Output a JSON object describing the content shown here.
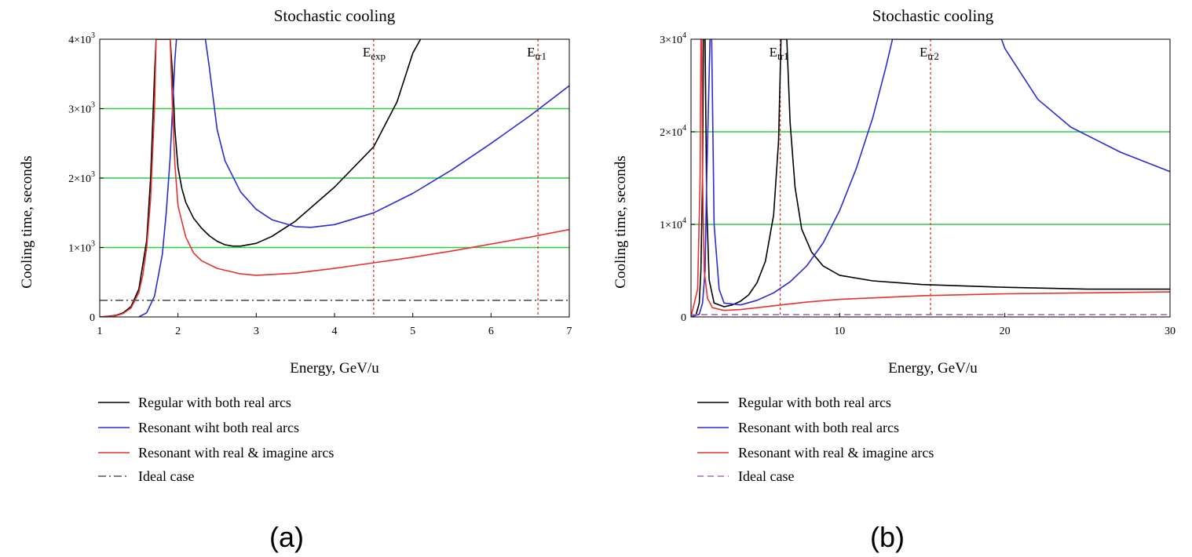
{
  "panels": [
    {
      "panel_label": "(a)",
      "legend": [
        {
          "label": "Regular with both real arcs",
          "color": "#000000",
          "dash": "solid"
        },
        {
          "label": "Resonant wiht both real arcs",
          "color": "#2b2bd6",
          "dash": "solid"
        },
        {
          "label": "Resonant with real & imagine arcs",
          "color": "#e8312e",
          "dash": "solid"
        },
        {
          "label": "Ideal case",
          "color": "#555555",
          "dash": "dashdot"
        }
      ]
    },
    {
      "panel_label": "(b)",
      "legend": [
        {
          "label": "Regular with both real arcs",
          "color": "#000000",
          "dash": "solid"
        },
        {
          "label": "Resonant with both real arcs",
          "color": "#2b2bd6",
          "dash": "solid"
        },
        {
          "label": "Resonant with real & imagine arcs",
          "color": "#e8312e",
          "dash": "solid"
        },
        {
          "label": "Ideal case",
          "color": "#a070b0",
          "dash": "dashed"
        }
      ]
    }
  ],
  "chart_data": [
    {
      "type": "line",
      "title": "Stochastic cooling",
      "xlabel": "Energy, GeV/u",
      "ylabel": "Cooling time, seconds",
      "xlim": [
        1,
        7
      ],
      "ylim": [
        0,
        4000
      ],
      "x_ticks": [
        {
          "value": 1,
          "label": "1"
        },
        {
          "value": 2,
          "label": "2"
        },
        {
          "value": 3,
          "label": "3"
        },
        {
          "value": 4,
          "label": "4"
        },
        {
          "value": 5,
          "label": "5"
        },
        {
          "value": 6,
          "label": "6"
        },
        {
          "value": 7,
          "label": "7"
        }
      ],
      "y_ticks": [
        {
          "value": 0,
          "mantissa": "0",
          "exponent": ""
        },
        {
          "value": 1000,
          "mantissa": "1×10",
          "exponent": "3"
        },
        {
          "value": 2000,
          "mantissa": "2×10",
          "exponent": "3"
        },
        {
          "value": 3000,
          "mantissa": "3×10",
          "exponent": "3"
        },
        {
          "value": 4000,
          "mantissa": "4×10",
          "exponent": "3"
        }
      ],
      "gridlines_y": [
        1000,
        2000,
        3000
      ],
      "grid_color": "#2ecc40",
      "vlines": [
        {
          "x": 4.5,
          "main": "E",
          "sub": "exp"
        },
        {
          "x": 6.6,
          "main": "E",
          "sub": "tr1"
        }
      ],
      "series": [
        {
          "name": "Regular with both real arcs",
          "color": "#000000",
          "dash": "solid",
          "x": [
            1.0,
            1.2,
            1.3,
            1.4,
            1.5,
            1.6,
            1.65,
            1.7,
            1.72,
            1.9,
            1.93,
            1.96,
            2.0,
            2.05,
            2.1,
            2.2,
            2.3,
            2.4,
            2.5,
            2.6,
            2.7,
            2.8,
            3.0,
            3.2,
            3.5,
            4.0,
            4.5,
            4.8,
            5.0,
            5.1
          ],
          "values": [
            0,
            20,
            60,
            150,
            400,
            1100,
            2000,
            3500,
            4000,
            4000,
            3500,
            2700,
            2150,
            1850,
            1650,
            1420,
            1280,
            1170,
            1090,
            1040,
            1020,
            1020,
            1060,
            1160,
            1380,
            1870,
            2450,
            3100,
            3800,
            4000
          ]
        },
        {
          "name": "Resonant wiht both real arcs",
          "color": "#2b2bd6",
          "dash": "solid",
          "x": [
            1.5,
            1.6,
            1.7,
            1.8,
            1.85,
            1.9,
            1.93,
            1.96,
            1.98,
            2.35,
            2.4,
            2.5,
            2.6,
            2.8,
            3.0,
            3.2,
            3.5,
            3.7,
            4.0,
            4.5,
            5.0,
            5.5,
            6.0,
            6.5,
            7.0
          ],
          "values": [
            0,
            60,
            300,
            900,
            1500,
            2300,
            3000,
            3700,
            4000,
            4000,
            3600,
            2700,
            2250,
            1800,
            1550,
            1400,
            1300,
            1290,
            1330,
            1500,
            1780,
            2120,
            2500,
            2900,
            3330
          ]
        },
        {
          "name": "Resonant with real & imagine arcs",
          "color": "#e8312e",
          "dash": "solid",
          "x": [
            1.0,
            1.2,
            1.3,
            1.4,
            1.5,
            1.55,
            1.6,
            1.65,
            1.7,
            1.72,
            1.9,
            1.93,
            1.96,
            2.0,
            2.1,
            2.2,
            2.3,
            2.5,
            2.8,
            3.0,
            3.5,
            4.0,
            4.5,
            5.0,
            5.5,
            6.0,
            6.5,
            7.0
          ],
          "values": [
            0,
            15,
            50,
            130,
            350,
            600,
            1000,
            1700,
            3000,
            4000,
            4000,
            3000,
            2200,
            1600,
            1150,
            920,
            810,
            700,
            620,
            600,
            630,
            700,
            780,
            860,
            950,
            1050,
            1150,
            1260
          ]
        },
        {
          "name": "Ideal case",
          "color": "#555555",
          "dash": "dashdot",
          "x": [
            1.0,
            7.0
          ],
          "values": [
            240,
            240
          ]
        }
      ]
    },
    {
      "type": "line",
      "title": "Stochastic cooling",
      "xlabel": "Energy, GeV/u",
      "ylabel": "Cooling time, seconds",
      "xlim": [
        1,
        30
      ],
      "ylim": [
        0,
        30000
      ],
      "x_ticks": [
        {
          "value": 10,
          "label": "10"
        },
        {
          "value": 20,
          "label": "20"
        },
        {
          "value": 30,
          "label": "30"
        }
      ],
      "y_ticks": [
        {
          "value": 0,
          "mantissa": "0",
          "exponent": ""
        },
        {
          "value": 10000,
          "mantissa": "1×10",
          "exponent": "4"
        },
        {
          "value": 20000,
          "mantissa": "2×10",
          "exponent": "4"
        },
        {
          "value": 30000,
          "mantissa": "3×10",
          "exponent": "4"
        }
      ],
      "gridlines_y": [
        10000,
        20000
      ],
      "grid_color": "#2ecc40",
      "vlines": [
        {
          "x": 6.4,
          "main": "E",
          "sub": "tr1"
        },
        {
          "x": 15.5,
          "main": "E",
          "sub": "tr2"
        }
      ],
      "series": [
        {
          "name": "Regular with both real arcs",
          "color": "#000000",
          "dash": "solid",
          "x": [
            1.0,
            1.3,
            1.5,
            1.6,
            1.7,
            1.75,
            1.85,
            1.95,
            2.1,
            2.4,
            3.0,
            3.5,
            4.0,
            4.5,
            5.0,
            5.5,
            6.0,
            6.3,
            6.45,
            6.8,
            7.0,
            7.3,
            7.7,
            8.3,
            9.0,
            10.0,
            12.0,
            15.0,
            20.0,
            25.0,
            30.0
          ],
          "values": [
            0,
            200,
            1500,
            5000,
            15000,
            30000,
            30000,
            12000,
            4000,
            1500,
            1100,
            1300,
            1700,
            2400,
            3700,
            6000,
            11000,
            19000,
            30000,
            30000,
            21000,
            14000,
            9500,
            7000,
            5500,
            4500,
            3900,
            3500,
            3200,
            3000,
            3000
          ]
        },
        {
          "name": "Resonant with both real arcs",
          "color": "#2b2bd6",
          "dash": "solid",
          "x": [
            1.0,
            1.5,
            1.7,
            1.85,
            1.95,
            2.15,
            2.25,
            2.4,
            2.7,
            3.0,
            4.0,
            5.0,
            6.0,
            7.0,
            8.0,
            9.0,
            10.0,
            11.0,
            12.0,
            12.8,
            13.2,
            19.8,
            20.0,
            22.0,
            24.0,
            27.0,
            30.0
          ],
          "values": [
            0,
            300,
            1500,
            5000,
            15000,
            30000,
            30000,
            10000,
            3000,
            1500,
            1300,
            1800,
            2600,
            3800,
            5500,
            8000,
            11500,
            16000,
            21500,
            27000,
            30000,
            30000,
            29000,
            23500,
            20500,
            17800,
            15700
          ]
        },
        {
          "name": "Resonant with real & imagine arcs",
          "color": "#e8312e",
          "dash": "solid",
          "x": [
            1.0,
            1.4,
            1.55,
            1.6,
            1.65,
            1.7,
            1.8,
            2.0,
            2.3,
            3.0,
            4.0,
            6.0,
            8.0,
            10.0,
            15.0,
            20.0,
            25.0,
            30.0
          ],
          "values": [
            0,
            3000,
            15000,
            30000,
            30000,
            15000,
            5000,
            2000,
            1000,
            700,
            800,
            1200,
            1600,
            1900,
            2300,
            2500,
            2600,
            2700
          ]
        },
        {
          "name": "Ideal case",
          "color": "#a070b0",
          "dash": "dashed",
          "x": [
            1.0,
            30.0
          ],
          "values": [
            250,
            250
          ]
        }
      ]
    }
  ]
}
